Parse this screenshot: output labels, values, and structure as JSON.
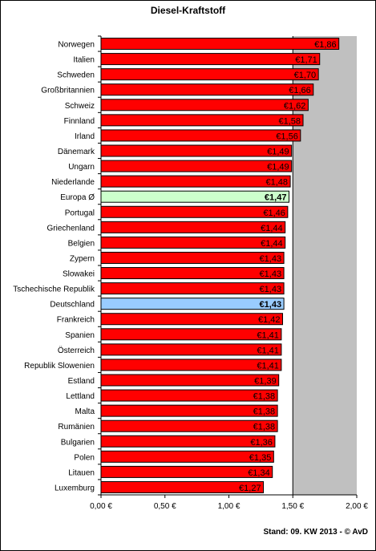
{
  "window": {
    "footer": "Stand: 09. KW 2013 - © AvD"
  },
  "chart_data": {
    "type": "bar",
    "orientation": "horizontal",
    "title": "Diesel-Kraftstoff",
    "xlim": [
      0,
      2.0
    ],
    "x_ticks": [
      "0,00 €",
      "0,50 €",
      "1,00 €",
      "1,50 €",
      "2,00 €"
    ],
    "x_tick_values": [
      0,
      0.5,
      1.0,
      1.5,
      2.0
    ],
    "reference_line": 1.5,
    "plot_background_right_of_line": "#c0c0c0",
    "bar_color": "#ff0000",
    "categories": [
      "Norwegen",
      "Italien",
      "Schweden",
      "Großbritannien",
      "Schweiz",
      "Finnland",
      "Irland",
      "Dänemark",
      "Ungarn",
      "Niederlande",
      "Europa Ø",
      "Portugal",
      "Griechenland",
      "Belgien",
      "Zypern",
      "Slowakei",
      "Tschechische Republik",
      "Deutschland",
      "Frankreich",
      "Spanien",
      "Österreich",
      "Republik Slowenien",
      "Estland",
      "Lettland",
      "Malta",
      "Rumänien",
      "Bulgarien",
      "Polen",
      "Litauen",
      "Luxemburg"
    ],
    "values": [
      1.86,
      1.71,
      1.7,
      1.66,
      1.62,
      1.58,
      1.56,
      1.49,
      1.49,
      1.48,
      1.47,
      1.46,
      1.44,
      1.44,
      1.43,
      1.43,
      1.43,
      1.43,
      1.42,
      1.41,
      1.41,
      1.41,
      1.39,
      1.38,
      1.38,
      1.38,
      1.36,
      1.35,
      1.34,
      1.27
    ],
    "labels": [
      "€1,86",
      "€1,71",
      "€1,70",
      "€1,66",
      "€1,62",
      "€1,58",
      "€1,56",
      "€1,49",
      "€1,49",
      "€1,48",
      "€1,47",
      "€1,46",
      "€1,44",
      "€1,44",
      "€1,43",
      "€1,43",
      "€1,43",
      "€1,43",
      "€1,42",
      "€1,41",
      "€1,41",
      "€1,41",
      "€1,39",
      "€1,38",
      "€1,38",
      "€1,38",
      "€1,36",
      "€1,35",
      "€1,34",
      "€1,27"
    ],
    "highlights": {
      "Europa Ø": "#ccffcc",
      "Deutschland": "#99ccff"
    }
  }
}
